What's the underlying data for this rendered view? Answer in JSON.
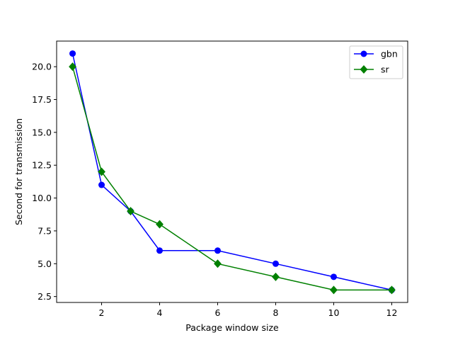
{
  "chart_data": {
    "type": "line",
    "title": "",
    "xlabel": "Package window size",
    "ylabel": "Second for transmission",
    "xlim": [
      0.45,
      12.55
    ],
    "ylim": [
      2.05,
      21.95
    ],
    "x_ticks": [
      2,
      4,
      6,
      8,
      10,
      12
    ],
    "y_ticks": [
      2.5,
      5.0,
      7.5,
      10.0,
      12.5,
      15.0,
      17.5,
      20.0
    ],
    "x_tick_labels": [
      "2",
      "4",
      "6",
      "8",
      "10",
      "12"
    ],
    "y_tick_labels": [
      "2.5",
      "5.0",
      "7.5",
      "10.0",
      "12.5",
      "15.0",
      "17.5",
      "20.0"
    ],
    "grid": false,
    "legend_position": "top-right",
    "series": [
      {
        "name": "gbn",
        "color": "#0000ff",
        "marker": "circle",
        "x": [
          1,
          2,
          3,
          4,
          6,
          8,
          10,
          12
        ],
        "y": [
          21,
          11,
          9,
          6,
          6,
          5,
          4,
          3
        ]
      },
      {
        "name": "sr",
        "color": "#008000",
        "marker": "diamond",
        "x": [
          1,
          2,
          3,
          4,
          6,
          8,
          10,
          12
        ],
        "y": [
          20,
          12,
          9,
          8,
          5,
          4,
          3,
          3
        ]
      }
    ]
  }
}
